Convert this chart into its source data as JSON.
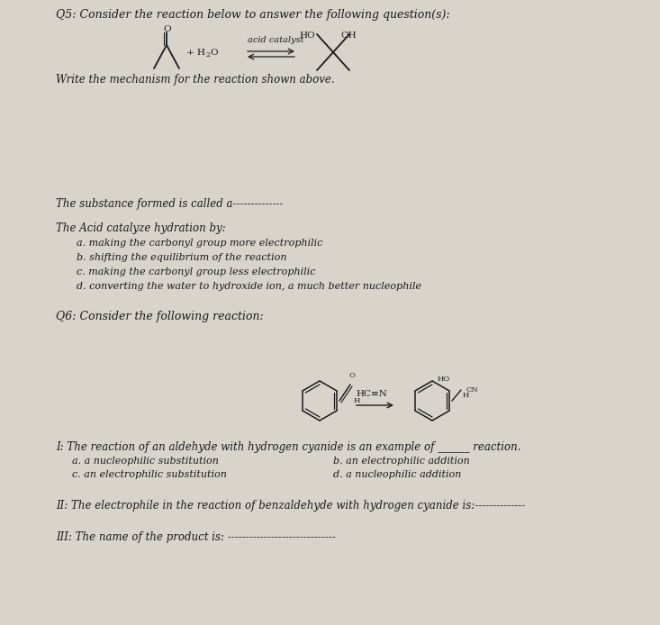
{
  "bg_color": "#d8d4cc",
  "paper_color": "#e8e5de",
  "text_color": "#1a1a1a",
  "title_q5": "Q5: Consider the reaction below to answer the following question(s):",
  "write_mechanism": "Write the mechanism for the reaction shown above.",
  "substance_line": "The substance formed is called a--------------",
  "acid_header": "The Acid catalyze hydration by:",
  "acid_options": [
    "a. making the carbonyl group more electrophilic",
    "b. shifting the equilibrium of the reaction",
    "c. making the carbonyl group less electrophilic",
    "d. converting the water to hydroxide ion, a much better nucleophile"
  ],
  "title_q6": "Q6: Consider the following reaction:",
  "q6_I": "I: The reaction of an aldehyde with hydrogen cyanide is an example of ______ reaction.",
  "q6_I_options_left": [
    "a. a nucleophilic substitution",
    "c. an electrophilic substitution"
  ],
  "q6_I_options_right": [
    "b. an electrophilic addition",
    "d. a nucleophilic addition"
  ],
  "q6_II": "II: The electrophile in the reaction of benzaldehyde with hydrogen cyanide is:--------------",
  "q6_III": "III: The name of the product is: ------------------------------",
  "fs_title": 9.0,
  "fs_body": 8.5,
  "fs_small": 7.5
}
